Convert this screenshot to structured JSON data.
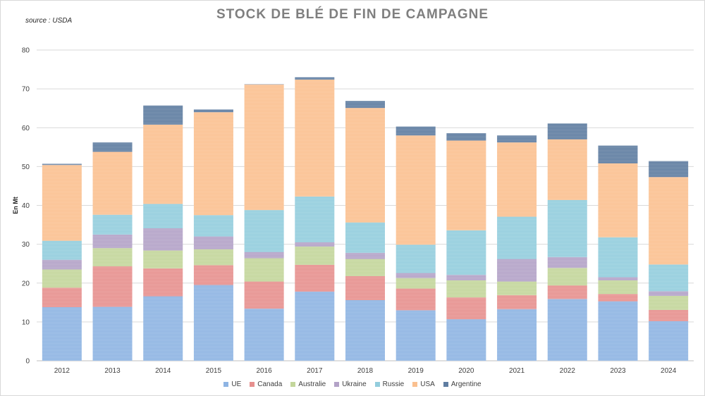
{
  "chart_data": {
    "type": "bar",
    "stacked": true,
    "title": "STOCK DE BLÉ DE FIN DE CAMPAGNE",
    "source": "source : USDA",
    "xlabel": "",
    "ylabel": "En Mt",
    "ylim": [
      0,
      80
    ],
    "yticks": [
      0,
      10,
      20,
      30,
      40,
      50,
      60,
      70,
      80
    ],
    "grid": true,
    "legend_position": "bottom",
    "categories": [
      "2012",
      "2013",
      "2014",
      "2015",
      "2016",
      "2017",
      "2018",
      "2019",
      "2020",
      "2021",
      "2022",
      "2023",
      "2024"
    ],
    "series": [
      {
        "name": "UE",
        "color": "#8eb4e3",
        "values": [
          13.8,
          13.9,
          16.6,
          19.5,
          13.4,
          17.8,
          15.6,
          13,
          10.7,
          13.3,
          15.9,
          15.3,
          10.2
        ]
      },
      {
        "name": "Canada",
        "color": "#e6908e",
        "values": [
          5,
          10.4,
          7.2,
          5.1,
          7,
          6.9,
          6.2,
          5.6,
          5.6,
          3.6,
          3.5,
          1.9,
          2.9
        ]
      },
      {
        "name": "Australie",
        "color": "#c3d69b",
        "values": [
          4.7,
          4.7,
          4.6,
          4.1,
          6,
          4.7,
          4.4,
          2.7,
          4.4,
          3.5,
          4.5,
          3.5,
          3.6
        ]
      },
      {
        "name": "Ukraine",
        "color": "#b3a2c7",
        "values": [
          2.5,
          3.5,
          5.7,
          3.3,
          1.6,
          1.1,
          1.6,
          1.3,
          1.4,
          5.8,
          2.8,
          0.8,
          1.2
        ]
      },
      {
        "name": "Russie",
        "color": "#93cddd",
        "values": [
          4.9,
          5.1,
          6.3,
          5.5,
          10.8,
          11.8,
          7.8,
          7.3,
          11.5,
          10.9,
          14.7,
          10.3,
          6.9
        ]
      },
      {
        "name": "USA",
        "color": "#fac090",
        "values": [
          19.5,
          16.2,
          20.4,
          26.5,
          32.3,
          30.1,
          29.5,
          28.1,
          23.1,
          19.1,
          15.6,
          19,
          22.5
        ]
      },
      {
        "name": "Argentine",
        "color": "#5f7da1",
        "values": [
          0.3,
          2.4,
          4.9,
          0.7,
          0.1,
          0.6,
          1.8,
          2.3,
          1.9,
          1.8,
          4.1,
          4.6,
          4.1
        ]
      }
    ]
  }
}
